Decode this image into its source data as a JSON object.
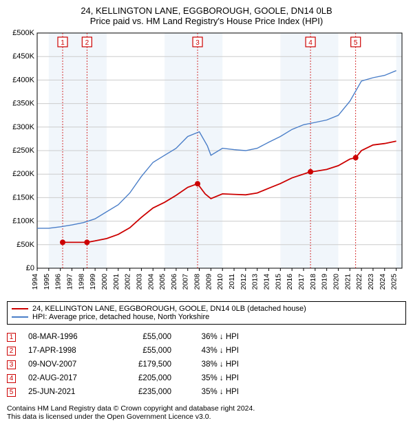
{
  "title": {
    "line1": "24, KELLINGTON LANE, EGGBOROUGH, GOOLE, DN14 0LB",
    "line2": "Price paid vs. HM Land Registry's House Price Index (HPI)"
  },
  "colors": {
    "line_property": "#cc0000",
    "line_hpi": "#4a7ec8",
    "marker_fill": "#cc0000",
    "marker_border": "#cc0000",
    "marker_ref_line": "#cc0000",
    "marker_box_border": "#cc0000",
    "marker_box_text": "#cc0000",
    "grid": "#cccccc",
    "axis_text": "#000000",
    "background": "#ffffff",
    "band": "#e8f0f8"
  },
  "chart": {
    "xlim": [
      1994,
      2025.5
    ],
    "ylim": [
      0,
      500000
    ],
    "ytick_step": 50000,
    "yticks_labels": [
      "£0",
      "£50K",
      "£100K",
      "£150K",
      "£200K",
      "£250K",
      "£300K",
      "£350K",
      "£400K",
      "£450K",
      "£500K"
    ],
    "xticks": [
      1994,
      1995,
      1996,
      1997,
      1998,
      1999,
      2000,
      2001,
      2002,
      2003,
      2004,
      2005,
      2006,
      2007,
      2008,
      2009,
      2010,
      2011,
      2012,
      2013,
      2014,
      2015,
      2016,
      2017,
      2018,
      2019,
      2020,
      2021,
      2022,
      2023,
      2024,
      2025
    ],
    "bands_5yr_start": [
      1995,
      2005,
      2015,
      2025
    ],
    "hpi_series": [
      [
        1994,
        85000
      ],
      [
        1995,
        85000
      ],
      [
        1996,
        88000
      ],
      [
        1997,
        92000
      ],
      [
        1998,
        97000
      ],
      [
        1999,
        105000
      ],
      [
        2000,
        120000
      ],
      [
        2001,
        135000
      ],
      [
        2002,
        160000
      ],
      [
        2003,
        195000
      ],
      [
        2004,
        225000
      ],
      [
        2005,
        240000
      ],
      [
        2006,
        255000
      ],
      [
        2007,
        280000
      ],
      [
        2008,
        290000
      ],
      [
        2008.7,
        260000
      ],
      [
        2009,
        240000
      ],
      [
        2010,
        255000
      ],
      [
        2011,
        252000
      ],
      [
        2012,
        250000
      ],
      [
        2013,
        255000
      ],
      [
        2014,
        268000
      ],
      [
        2015,
        280000
      ],
      [
        2016,
        295000
      ],
      [
        2017,
        305000
      ],
      [
        2018,
        310000
      ],
      [
        2019,
        315000
      ],
      [
        2020,
        325000
      ],
      [
        2021,
        355000
      ],
      [
        2022,
        398000
      ],
      [
        2023,
        405000
      ],
      [
        2024,
        410000
      ],
      [
        2025,
        420000
      ]
    ],
    "property_series": [
      [
        1996.2,
        55000
      ],
      [
        1998.3,
        55000
      ],
      [
        1999,
        58000
      ],
      [
        2000,
        63000
      ],
      [
        2001,
        72000
      ],
      [
        2002,
        86000
      ],
      [
        2003,
        108000
      ],
      [
        2004,
        128000
      ],
      [
        2005,
        140000
      ],
      [
        2006,
        155000
      ],
      [
        2007,
        172000
      ],
      [
        2007.85,
        179500
      ],
      [
        2008.5,
        158000
      ],
      [
        2009,
        148000
      ],
      [
        2010,
        158000
      ],
      [
        2011,
        157000
      ],
      [
        2012,
        156000
      ],
      [
        2013,
        160000
      ],
      [
        2014,
        170000
      ],
      [
        2015,
        180000
      ],
      [
        2016,
        192000
      ],
      [
        2017.6,
        205000
      ],
      [
        2018,
        206000
      ],
      [
        2019,
        210000
      ],
      [
        2020,
        218000
      ],
      [
        2021,
        232000
      ],
      [
        2021.5,
        235000
      ],
      [
        2022,
        250000
      ],
      [
        2023,
        262000
      ],
      [
        2024,
        265000
      ],
      [
        2025,
        270000
      ]
    ],
    "markers": [
      {
        "n": 1,
        "x": 1996.2,
        "y": 55000
      },
      {
        "n": 2,
        "x": 1998.3,
        "y": 55000
      },
      {
        "n": 3,
        "x": 2007.85,
        "y": 179500
      },
      {
        "n": 4,
        "x": 2017.6,
        "y": 205000
      },
      {
        "n": 5,
        "x": 2021.5,
        "y": 235000
      }
    ]
  },
  "legend": {
    "property": "24, KELLINGTON LANE, EGGBOROUGH, GOOLE, DN14 0LB (detached house)",
    "hpi": "HPI: Average price, detached house, North Yorkshire"
  },
  "transactions": [
    {
      "n": "1",
      "date": "08-MAR-1996",
      "price": "£55,000",
      "pct": "36% ↓ HPI"
    },
    {
      "n": "2",
      "date": "17-APR-1998",
      "price": "£55,000",
      "pct": "43% ↓ HPI"
    },
    {
      "n": "3",
      "date": "09-NOV-2007",
      "price": "£179,500",
      "pct": "38% ↓ HPI"
    },
    {
      "n": "4",
      "date": "02-AUG-2017",
      "price": "£205,000",
      "pct": "35% ↓ HPI"
    },
    {
      "n": "5",
      "date": "25-JUN-2021",
      "price": "£235,000",
      "pct": "35% ↓ HPI"
    }
  ],
  "attribution": {
    "line1": "Contains HM Land Registry data © Crown copyright and database right 2024.",
    "line2": "This data is licensed under the Open Government Licence v3.0."
  }
}
